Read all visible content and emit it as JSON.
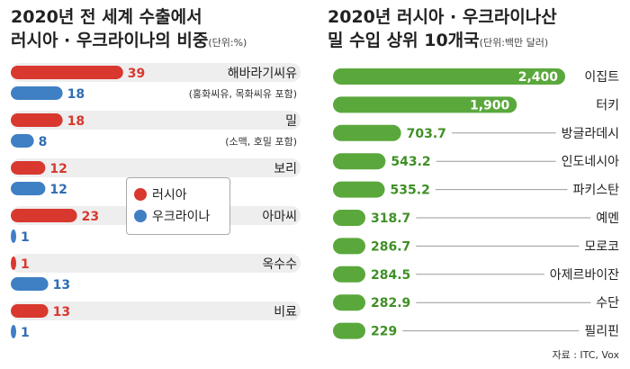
{
  "left": {
    "title_line1": "2020년 전 세계 수출에서",
    "title_line2": "러시아 · 우크라이나의 비중",
    "unit": "(단위:%)",
    "legend": {
      "russia": "러시아",
      "ukraine": "우크라이나"
    },
    "colors": {
      "russia": "#d8382e",
      "ukraine": "#3f7fc4",
      "value_russia": "#d8382e",
      "value_ukraine": "#2f6db3"
    }
  },
  "right": {
    "title_line1": "2020년 러시아 · 우크라이나산",
    "title_line2": "밀 수입 상위 10개국",
    "unit": "(단위:백만 달러)",
    "colors": {
      "bar": "#5aa83c",
      "value": "#3f8f26"
    }
  },
  "source": "자료 : ITC, Vox",
  "chart_data": [
    {
      "type": "bar",
      "title": "2020년 전 세계 수출에서 러시아 · 우크라이나의 비중",
      "unit": "%",
      "categories": [
        "해바라기씨유",
        "밀",
        "보리",
        "아마씨",
        "옥수수",
        "비료"
      ],
      "category_notes": [
        "(홍화씨유, 목화씨유 포함)",
        "(소맥, 호밀 포함)",
        "",
        "",
        "",
        ""
      ],
      "series": [
        {
          "name": "러시아",
          "values": [
            39,
            18,
            12,
            23,
            1,
            13
          ]
        },
        {
          "name": "우크라이나",
          "values": [
            18,
            8,
            12,
            1,
            13,
            1
          ]
        }
      ]
    },
    {
      "type": "bar",
      "title": "2020년 러시아 · 우크라이나산 밀 수입 상위 10개국",
      "unit": "백만 달러",
      "categories": [
        "이집트",
        "터키",
        "방글라데시",
        "인도네시아",
        "파키스탄",
        "예멘",
        "모로코",
        "아제르바이잔",
        "수단",
        "필리핀"
      ],
      "values": [
        2400,
        1900,
        703.7,
        543.2,
        535.2,
        318.7,
        286.7,
        284.5,
        282.9,
        229
      ],
      "value_labels": [
        "2,400",
        "1,900",
        "703.7",
        "543.2",
        "535.2",
        "318.7",
        "286.7",
        "284.5",
        "282.9",
        "229"
      ]
    }
  ]
}
